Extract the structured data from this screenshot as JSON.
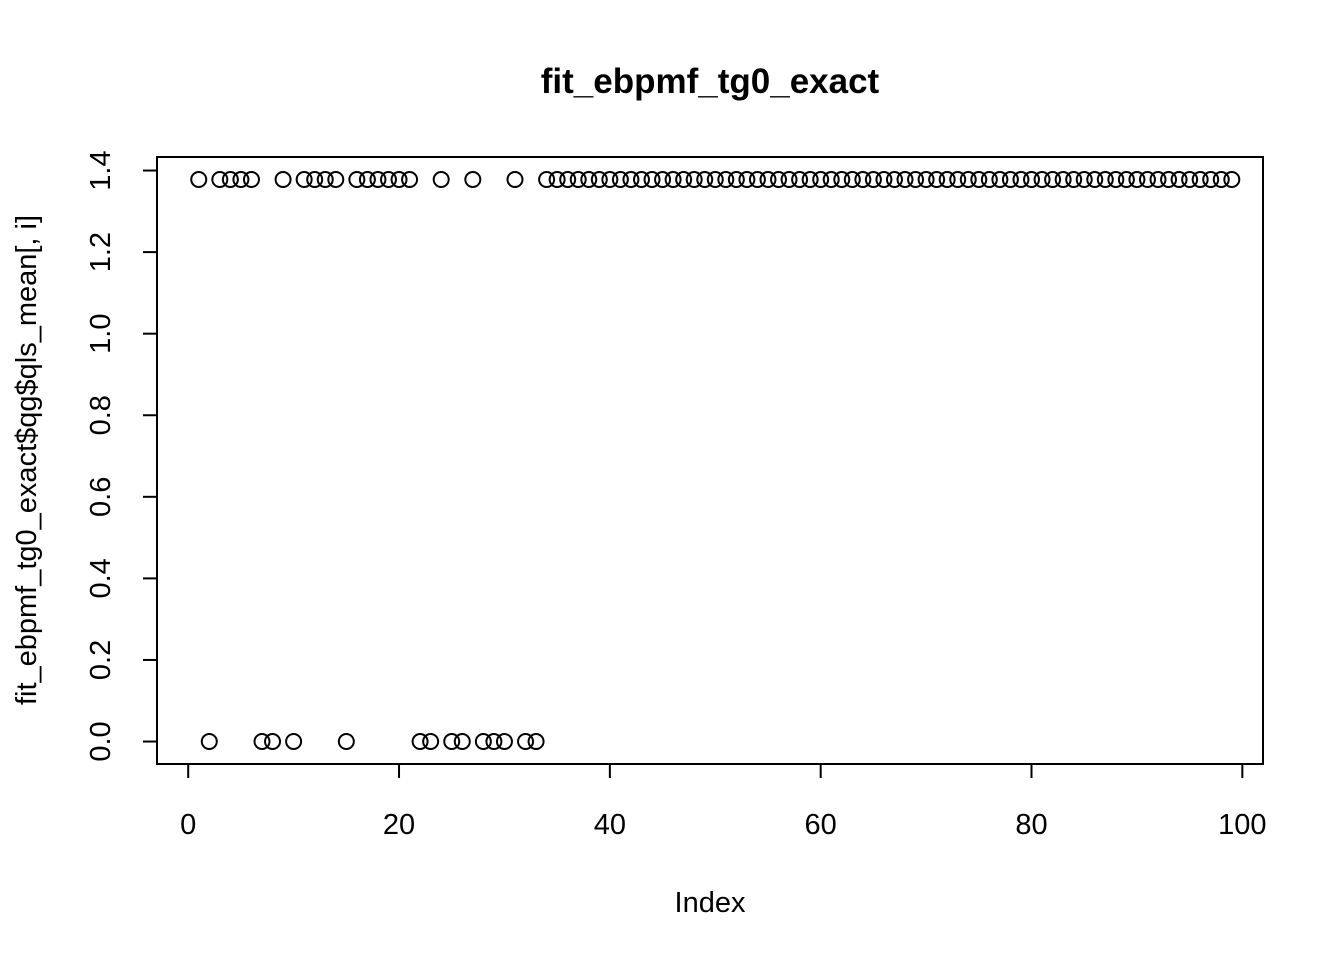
{
  "chart_data": {
    "type": "scatter",
    "title": "fit_ebpmf_tg0_exact",
    "xlabel": "Index",
    "ylabel": "fit_ebpmf_tg0_exact$qg$qls_mean[, i]",
    "xlim": [
      -2.96,
      101.96
    ],
    "ylim": [
      -0.0551,
      1.4332
    ],
    "x_ticks": [
      0,
      20,
      40,
      60,
      80,
      100
    ],
    "x_tick_labels": [
      "0",
      "20",
      "40",
      "60",
      "80",
      "100"
    ],
    "y_ticks": [
      0.0,
      0.2,
      0.4,
      0.6,
      0.8,
      1.0,
      1.2,
      1.4
    ],
    "y_tick_labels": [
      "0.0",
      "0.2",
      "0.4",
      "0.6",
      "0.8",
      "1.0",
      "1.2",
      "1.4"
    ],
    "grid": false,
    "legend": "none",
    "series": [
      {
        "x": [
          1,
          2,
          3,
          4,
          5,
          6,
          7,
          8,
          9,
          10,
          11,
          12,
          13,
          14,
          15,
          16,
          17,
          18,
          19,
          20,
          21,
          22,
          23,
          24,
          25,
          26,
          27,
          28,
          29,
          30,
          31,
          32,
          33,
          34,
          35,
          36,
          37,
          38,
          39,
          40,
          41,
          42,
          43,
          44,
          45,
          46,
          47,
          48,
          49,
          50,
          51,
          52,
          53,
          54,
          55,
          56,
          57,
          58,
          59,
          60,
          61,
          62,
          63,
          64,
          65,
          66,
          67,
          68,
          69,
          70,
          71,
          72,
          73,
          74,
          75,
          76,
          77,
          78,
          79,
          80,
          81,
          82,
          83,
          84,
          85,
          86,
          87,
          88,
          89,
          90,
          91,
          92,
          93,
          94,
          95,
          96,
          97,
          98,
          99
        ],
        "y": [
          1.378,
          0,
          1.378,
          1.378,
          1.378,
          1.378,
          0,
          0,
          1.378,
          0,
          1.378,
          1.378,
          1.378,
          1.378,
          0,
          1.378,
          1.378,
          1.378,
          1.378,
          1.378,
          1.378,
          0,
          0,
          1.378,
          0,
          0,
          1.378,
          0,
          0,
          0,
          1.378,
          0,
          0,
          1.378,
          1.378,
          1.378,
          1.378,
          1.378,
          1.378,
          1.378,
          1.378,
          1.378,
          1.378,
          1.378,
          1.378,
          1.378,
          1.378,
          1.378,
          1.378,
          1.378,
          1.378,
          1.378,
          1.378,
          1.378,
          1.378,
          1.378,
          1.378,
          1.378,
          1.378,
          1.378,
          1.378,
          1.378,
          1.378,
          1.378,
          1.378,
          1.378,
          1.378,
          1.378,
          1.378,
          1.378,
          1.378,
          1.378,
          1.378,
          1.378,
          1.378,
          1.378,
          1.378,
          1.378,
          1.378,
          1.378,
          1.378,
          1.378,
          1.378,
          1.378,
          1.378,
          1.378,
          1.378,
          1.378,
          1.378,
          1.378,
          1.378,
          1.378,
          1.378,
          1.378,
          1.378,
          1.378,
          1.378,
          1.378,
          1.378
        ]
      }
    ]
  }
}
